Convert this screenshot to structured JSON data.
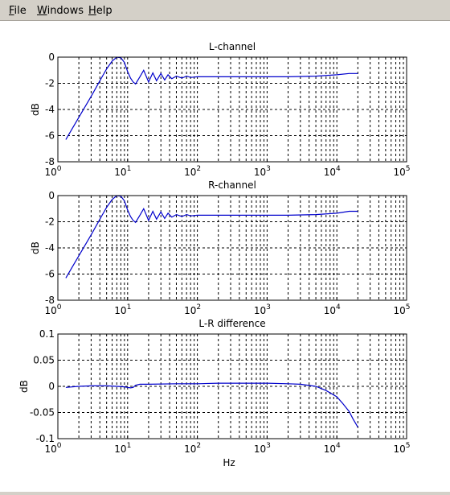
{
  "menu": {
    "items": [
      {
        "label": "File",
        "key": "F",
        "rest": "ile"
      },
      {
        "label": "Windows",
        "key": "W",
        "rest": "indows"
      },
      {
        "label": "Help",
        "key": "H",
        "rest": "elp"
      }
    ]
  },
  "colors": {
    "line": "#0000cc",
    "grid": "#000000",
    "background": "#ffffff",
    "chrome": "#d4d0c8"
  },
  "chart_data": [
    {
      "type": "line",
      "title": "L-channel",
      "xlabel": "",
      "ylabel": "dB",
      "xscale": "log",
      "xlim": [
        1,
        100000
      ],
      "ylim": [
        -8,
        0
      ],
      "xticks": [
        1,
        10,
        100,
        1000,
        10000,
        100000
      ],
      "xticklabels": [
        "10^0",
        "10^1",
        "10^2",
        "10^3",
        "10^4",
        "10^5"
      ],
      "yticks": [
        -8,
        -6,
        -4,
        -2,
        0
      ],
      "yticklabels": [
        "-8",
        "-6",
        "-4",
        "-2",
        "0"
      ],
      "grid": true,
      "series": [
        {
          "color": "#0000cc",
          "x": [
            1.3,
            2,
            3,
            4,
            5,
            6,
            7,
            8,
            9,
            10,
            11,
            12,
            13,
            15,
            17,
            20,
            23,
            26,
            30,
            34,
            38,
            43,
            50,
            60,
            70,
            80,
            100,
            200,
            500,
            1000,
            2000,
            5000,
            10000,
            15000,
            20000
          ],
          "y": [
            -6.3,
            -4.6,
            -3.0,
            -1.8,
            -0.9,
            -0.3,
            0.0,
            -0.05,
            -0.4,
            -1.1,
            -1.6,
            -1.9,
            -2.05,
            -1.5,
            -1.0,
            -1.9,
            -1.2,
            -1.8,
            -1.25,
            -1.75,
            -1.35,
            -1.65,
            -1.45,
            -1.6,
            -1.45,
            -1.55,
            -1.5,
            -1.5,
            -1.5,
            -1.5,
            -1.5,
            -1.45,
            -1.35,
            -1.25,
            -1.25
          ]
        }
      ]
    },
    {
      "type": "line",
      "title": "R-channel",
      "xlabel": "",
      "ylabel": "dB",
      "xscale": "log",
      "xlim": [
        1,
        100000
      ],
      "ylim": [
        -8,
        0
      ],
      "xticks": [
        1,
        10,
        100,
        1000,
        10000,
        100000
      ],
      "xticklabels": [
        "10^0",
        "10^1",
        "10^2",
        "10^3",
        "10^4",
        "10^5"
      ],
      "yticks": [
        -8,
        -6,
        -4,
        -2,
        0
      ],
      "yticklabels": [
        "-8",
        "-6",
        "-4",
        "-2",
        "0"
      ],
      "grid": true,
      "series": [
        {
          "color": "#0000cc",
          "x": [
            1.3,
            2,
            3,
            4,
            5,
            6,
            7,
            8,
            9,
            10,
            11,
            12,
            13,
            15,
            17,
            20,
            23,
            26,
            30,
            34,
            38,
            43,
            50,
            60,
            70,
            80,
            100,
            200,
            500,
            1000,
            2000,
            5000,
            10000,
            15000,
            20000
          ],
          "y": [
            -6.3,
            -4.6,
            -3.0,
            -1.8,
            -0.9,
            -0.3,
            0.0,
            -0.05,
            -0.4,
            -1.1,
            -1.6,
            -1.9,
            -2.05,
            -1.5,
            -1.0,
            -1.9,
            -1.2,
            -1.8,
            -1.25,
            -1.75,
            -1.35,
            -1.65,
            -1.45,
            -1.6,
            -1.45,
            -1.55,
            -1.5,
            -1.5,
            -1.5,
            -1.5,
            -1.5,
            -1.45,
            -1.35,
            -1.2,
            -1.2
          ]
        }
      ]
    },
    {
      "type": "line",
      "title": "L-R difference",
      "xlabel": "Hz",
      "ylabel": "dB",
      "xscale": "log",
      "xlim": [
        1,
        100000
      ],
      "ylim": [
        -0.1,
        0.1
      ],
      "xticks": [
        1,
        10,
        100,
        1000,
        10000,
        100000
      ],
      "xticklabels": [
        "10^0",
        "10^1",
        "10^2",
        "10^3",
        "10^4",
        "10^5"
      ],
      "yticks": [
        -0.1,
        -0.05,
        0,
        0.05,
        0.1
      ],
      "yticklabels": [
        "-0.1",
        "-0.05",
        "0",
        "0.05",
        "0.1"
      ],
      "grid": true,
      "series": [
        {
          "color": "#0000cc",
          "x": [
            1.3,
            2,
            3,
            5,
            7,
            9,
            10,
            11,
            12,
            13,
            15,
            20,
            50,
            100,
            200,
            500,
            1000,
            2000,
            3000,
            5000,
            7000,
            10000,
            12000,
            15000,
            17000,
            20000
          ],
          "y": [
            -0.002,
            0.0,
            0.001,
            0.001,
            0.0,
            -0.001,
            -0.002,
            -0.003,
            -0.002,
            0.002,
            0.004,
            0.004,
            0.005,
            0.005,
            0.006,
            0.006,
            0.006,
            0.005,
            0.004,
            0.0,
            -0.008,
            -0.02,
            -0.032,
            -0.048,
            -0.062,
            -0.078
          ]
        }
      ]
    }
  ]
}
